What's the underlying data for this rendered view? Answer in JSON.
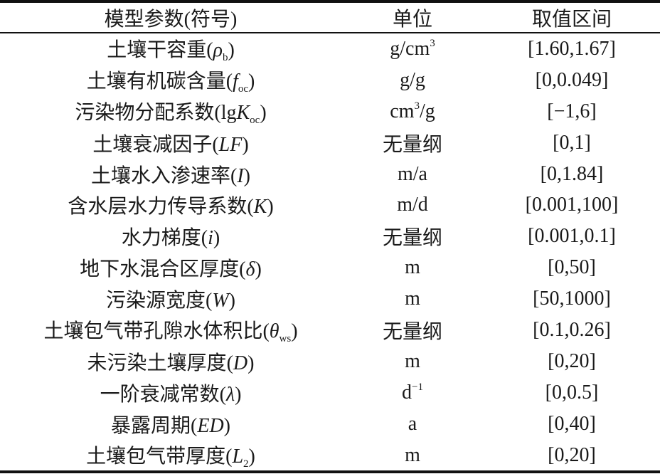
{
  "header": {
    "param": "模型参数(符号)",
    "unit": "单位",
    "range": "取值区间"
  },
  "rows": [
    {
      "name": "土壤干容重",
      "prefix": "",
      "sym": "ρ",
      "sub": "b",
      "unit": "g/cm",
      "unit_sup": "3",
      "unit_tail": "",
      "range": "[1.60,1.67]"
    },
    {
      "name": "土壤有机碳含量",
      "prefix": "",
      "sym": "f",
      "sub": "oc",
      "unit": "g/g",
      "unit_sup": "",
      "unit_tail": "",
      "range": "[0,0.049]"
    },
    {
      "name": "污染物分配系数",
      "prefix": "lg",
      "sym": "K",
      "sub": "oc",
      "unit": "cm",
      "unit_sup": "3",
      "unit_tail": "/g",
      "range": "[−1,6]"
    },
    {
      "name": "土壤衰减因子",
      "prefix": "",
      "sym": "LF",
      "sub": "",
      "unit": "无量纲",
      "unit_sup": "",
      "unit_tail": "",
      "range": "[0,1]"
    },
    {
      "name": "土壤水入渗速率",
      "prefix": "",
      "sym": "I",
      "sub": "",
      "unit": "m/a",
      "unit_sup": "",
      "unit_tail": "",
      "range": "[0,1.84]"
    },
    {
      "name": "含水层水力传导系数",
      "prefix": "",
      "sym": "K",
      "sub": "",
      "unit": "m/d",
      "unit_sup": "",
      "unit_tail": "",
      "range": "[0.001,100]"
    },
    {
      "name": "水力梯度",
      "prefix": "",
      "sym": "i",
      "sub": "",
      "unit": "无量纲",
      "unit_sup": "",
      "unit_tail": "",
      "range": "[0.001,0.1]"
    },
    {
      "name": "地下水混合区厚度",
      "prefix": "",
      "sym": "δ",
      "sub": "",
      "unit": "m",
      "unit_sup": "",
      "unit_tail": "",
      "range": "[0,50]"
    },
    {
      "name": "污染源宽度",
      "prefix": "",
      "sym": "W",
      "sub": "",
      "unit": "m",
      "unit_sup": "",
      "unit_tail": "",
      "range": "[50,1000]"
    },
    {
      "name": "土壤包气带孔隙水体积比",
      "prefix": "",
      "sym": "θ",
      "sub": "ws",
      "unit": "无量纲",
      "unit_sup": "",
      "unit_tail": "",
      "range": "[0.1,0.26]"
    },
    {
      "name": "未污染土壤厚度",
      "prefix": "",
      "sym": "D",
      "sub": "",
      "unit": "m",
      "unit_sup": "",
      "unit_tail": "",
      "range": "[0,20]"
    },
    {
      "name": "一阶衰减常数",
      "prefix": "",
      "sym": "λ",
      "sub": "",
      "unit": "d",
      "unit_sup": "−1",
      "unit_tail": "",
      "range": "[0,0.5]"
    },
    {
      "name": "暴露周期",
      "prefix": "",
      "sym": "ED",
      "sub": "",
      "unit": "a",
      "unit_sup": "",
      "unit_tail": "",
      "range": "[0,40]"
    },
    {
      "name": "土壤包气带厚度",
      "prefix": "",
      "sym": "L",
      "sub": "2",
      "unit": "m",
      "unit_sup": "",
      "unit_tail": "",
      "range": "[0,20]"
    }
  ]
}
